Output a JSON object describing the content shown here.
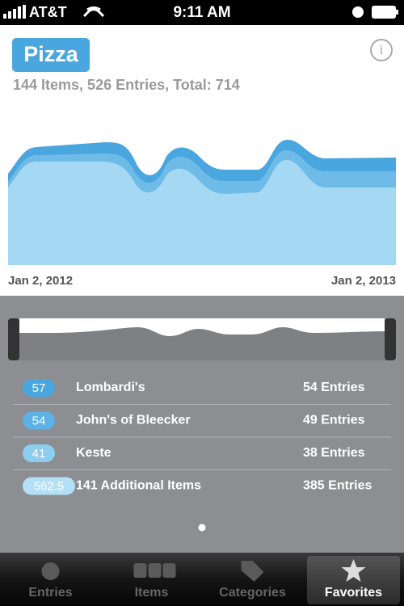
{
  "status_bar": {
    "carrier": "AT&T",
    "time": "9:11 AM"
  },
  "header": {
    "title": "Pizza",
    "subtitle": "144 Items, 526 Entries, Total: 714"
  },
  "chart": {
    "start_label": "Jan 2, 2012",
    "end_label": "Jan 2, 2013"
  },
  "list": [
    {
      "rank": "57",
      "name": "Lombardi's",
      "entries": "54 Entries"
    },
    {
      "rank": "54",
      "name": "John's of Bleecker",
      "entries": "49 Entries"
    },
    {
      "rank": "41",
      "name": "Keste",
      "entries": "38 Entries"
    },
    {
      "rank": "562.5",
      "name": "141 Additional Items",
      "entries": "385 Entries"
    }
  ],
  "tabs": [
    "Entries",
    "Items",
    "Categories",
    "Favorites"
  ],
  "selected_tab": 3
}
